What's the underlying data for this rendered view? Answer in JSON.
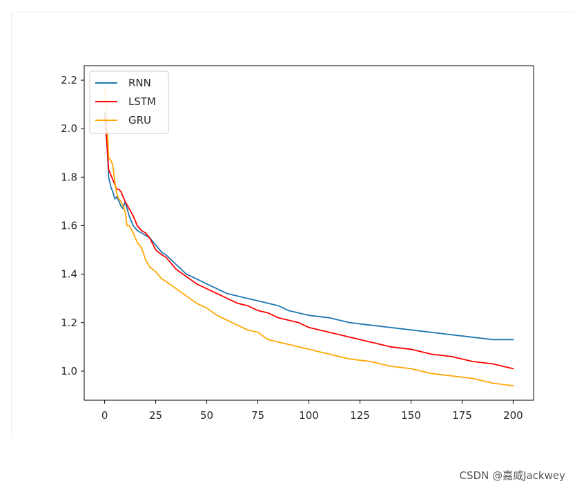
{
  "watermark": "CSDN @嘉威Jackwey",
  "chart_data": {
    "type": "line",
    "xlim": [
      -10,
      210
    ],
    "ylim": [
      0.88,
      2.26
    ],
    "xticks": [
      0,
      25,
      50,
      75,
      100,
      125,
      150,
      175,
      200
    ],
    "yticks": [
      1.0,
      1.2,
      1.4,
      1.6,
      1.8,
      2.0,
      2.2
    ],
    "xtick_labels": [
      "0",
      "25",
      "50",
      "75",
      "100",
      "125",
      "150",
      "175",
      "200"
    ],
    "ytick_labels": [
      "1.0",
      "1.2",
      "1.4",
      "1.6",
      "1.8",
      "2.0",
      "2.2"
    ],
    "grid": false,
    "legend_position": "top-left",
    "series": [
      {
        "name": "RNN",
        "color": "#1f77b4",
        "x": [
          0,
          1,
          2,
          3,
          4,
          5,
          6,
          7,
          8,
          9,
          10,
          12,
          14,
          16,
          18,
          20,
          22,
          25,
          28,
          30,
          35,
          40,
          45,
          50,
          55,
          60,
          65,
          70,
          75,
          80,
          85,
          90,
          95,
          100,
          110,
          120,
          130,
          140,
          150,
          160,
          170,
          180,
          190,
          200
        ],
        "y": [
          2.07,
          1.95,
          1.8,
          1.76,
          1.74,
          1.71,
          1.72,
          1.7,
          1.68,
          1.67,
          1.7,
          1.64,
          1.6,
          1.58,
          1.57,
          1.56,
          1.55,
          1.52,
          1.49,
          1.48,
          1.44,
          1.4,
          1.38,
          1.36,
          1.34,
          1.32,
          1.31,
          1.3,
          1.29,
          1.28,
          1.27,
          1.25,
          1.24,
          1.23,
          1.22,
          1.2,
          1.19,
          1.18,
          1.17,
          1.16,
          1.15,
          1.14,
          1.13,
          1.13
        ]
      },
      {
        "name": "LSTM",
        "color": "#ff0000",
        "x": [
          0,
          1,
          2,
          3,
          4,
          5,
          6,
          7,
          8,
          9,
          10,
          12,
          14,
          16,
          18,
          20,
          22,
          25,
          28,
          30,
          35,
          40,
          45,
          50,
          55,
          60,
          65,
          70,
          75,
          80,
          85,
          90,
          95,
          100,
          110,
          120,
          130,
          140,
          150,
          160,
          170,
          180,
          190,
          200
        ],
        "y": [
          2.05,
          1.95,
          1.83,
          1.81,
          1.79,
          1.77,
          1.75,
          1.75,
          1.74,
          1.72,
          1.7,
          1.67,
          1.64,
          1.6,
          1.58,
          1.57,
          1.55,
          1.5,
          1.48,
          1.47,
          1.42,
          1.39,
          1.36,
          1.34,
          1.32,
          1.3,
          1.28,
          1.27,
          1.25,
          1.24,
          1.22,
          1.21,
          1.2,
          1.18,
          1.16,
          1.14,
          1.12,
          1.1,
          1.09,
          1.07,
          1.06,
          1.04,
          1.03,
          1.01
        ]
      },
      {
        "name": "GRU",
        "color": "#ffa500",
        "x": [
          0,
          1,
          2,
          3,
          4,
          5,
          6,
          7,
          8,
          9,
          10,
          11,
          12,
          14,
          16,
          18,
          20,
          22,
          25,
          28,
          30,
          35,
          40,
          45,
          50,
          55,
          60,
          65,
          70,
          75,
          80,
          85,
          90,
          95,
          100,
          110,
          120,
          130,
          140,
          150,
          160,
          170,
          180,
          190,
          200
        ],
        "y": [
          2.17,
          2.05,
          1.88,
          1.87,
          1.85,
          1.78,
          1.73,
          1.71,
          1.7,
          1.68,
          1.66,
          1.6,
          1.6,
          1.57,
          1.53,
          1.51,
          1.46,
          1.43,
          1.41,
          1.38,
          1.37,
          1.34,
          1.31,
          1.28,
          1.26,
          1.23,
          1.21,
          1.19,
          1.17,
          1.16,
          1.13,
          1.12,
          1.11,
          1.1,
          1.09,
          1.07,
          1.05,
          1.04,
          1.02,
          1.01,
          0.99,
          0.98,
          0.97,
          0.95,
          0.94
        ]
      }
    ]
  }
}
